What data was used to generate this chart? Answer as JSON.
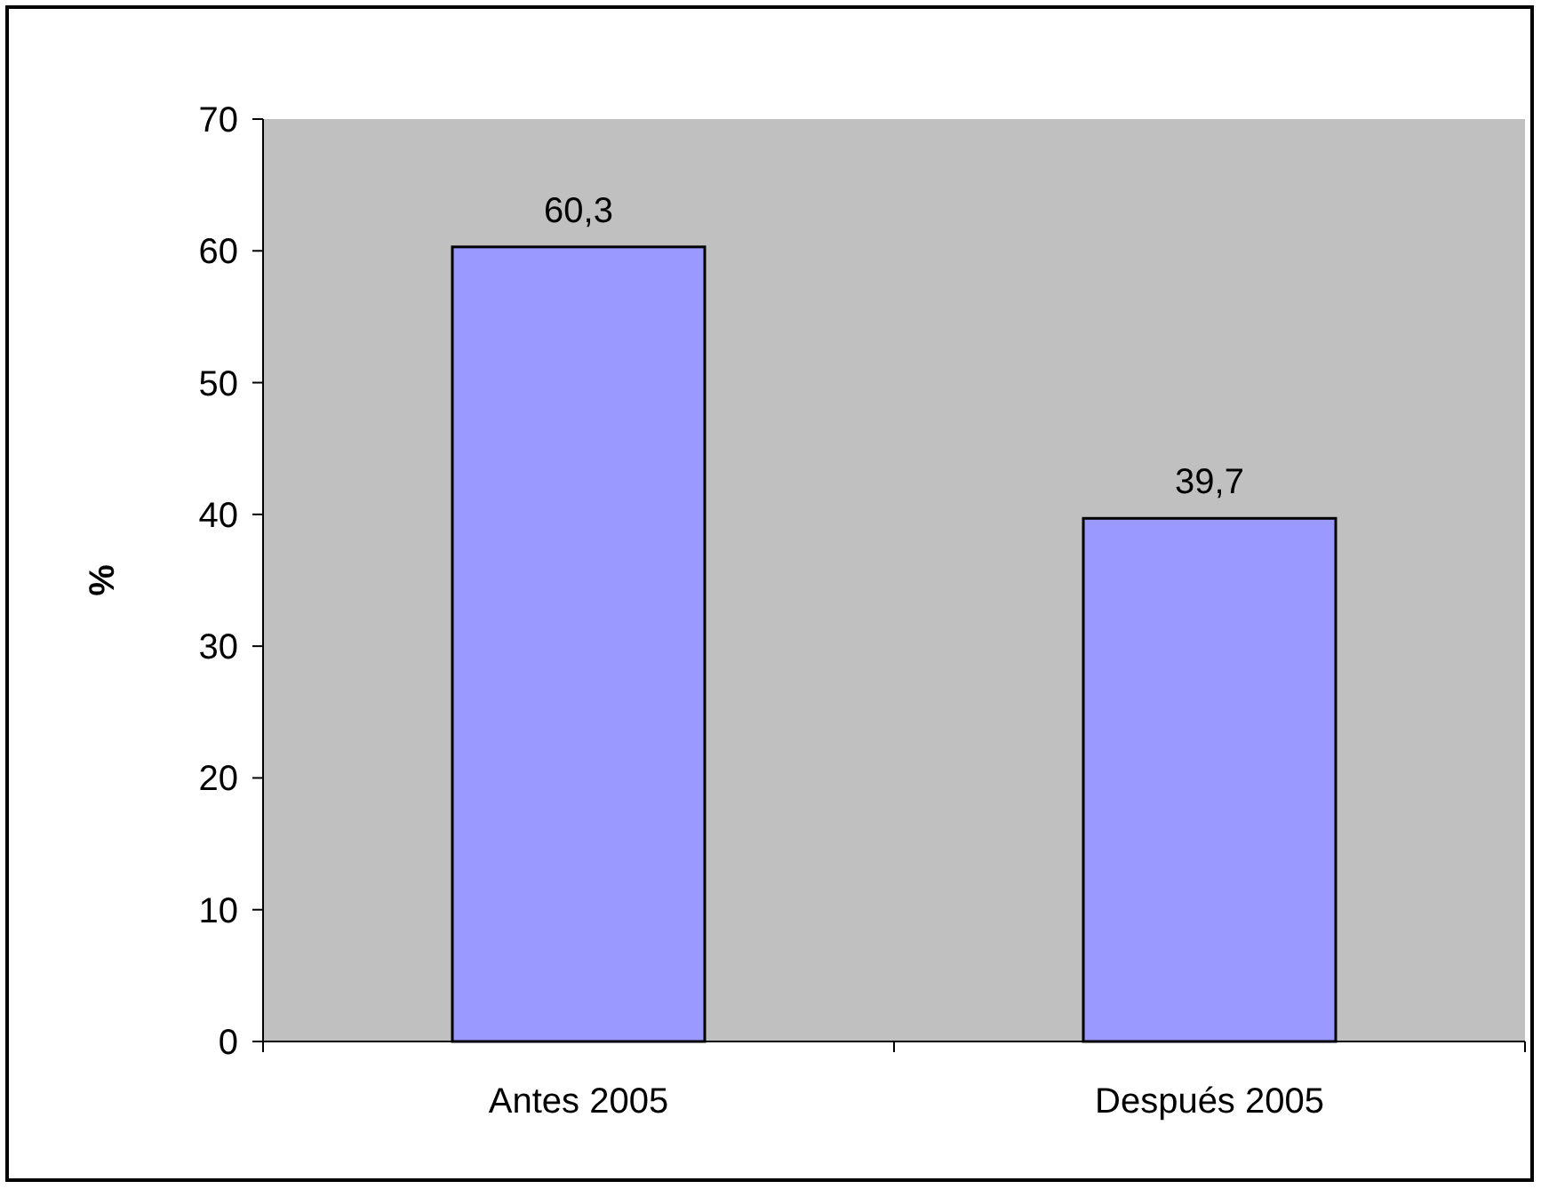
{
  "chart_data": {
    "type": "bar",
    "ylabel": "%",
    "categories": [
      "Antes 2005",
      "Después 2005"
    ],
    "values": [
      60.3,
      39.7
    ],
    "value_labels": [
      "60,3",
      "39,7"
    ],
    "color": "#9999ff",
    "ylim": [
      0,
      70
    ],
    "yticks": [
      0,
      10,
      20,
      30,
      40,
      50,
      60,
      70
    ],
    "grid": false
  }
}
